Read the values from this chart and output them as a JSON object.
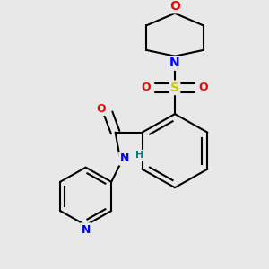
{
  "bg_color": "#e8e8e8",
  "bond_color": "#000000",
  "O_color": "#ff0000",
  "N_color": "#0000ff",
  "S_color": "#cccc00",
  "H_color": "#008080",
  "line_width": 1.5,
  "figsize": [
    3.0,
    3.0
  ],
  "dpi": 100,
  "xlim": [
    0,
    300
  ],
  "ylim": [
    0,
    300
  ]
}
